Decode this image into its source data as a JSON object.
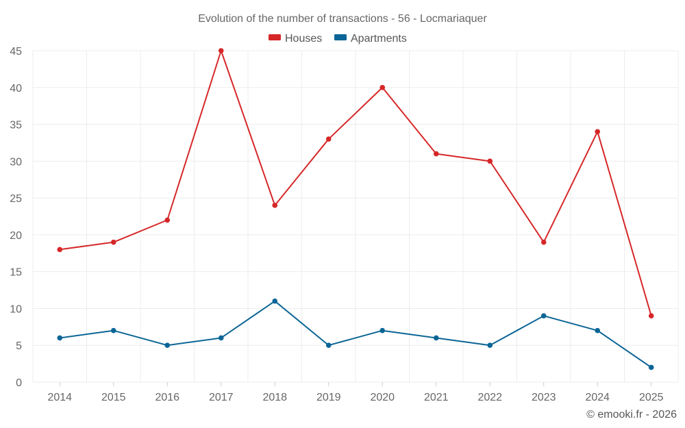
{
  "chart_data": {
    "type": "line",
    "title": "Evolution of the number of transactions - 56 - Locmariaquer",
    "categories": [
      "2014",
      "2015",
      "2016",
      "2017",
      "2018",
      "2019",
      "2020",
      "2021",
      "2022",
      "2023",
      "2024",
      "2025"
    ],
    "series": [
      {
        "name": "Houses",
        "color": "#d62728",
        "values": [
          18,
          19,
          22,
          45,
          24,
          33,
          40,
          31,
          30,
          19,
          34,
          9
        ]
      },
      {
        "name": "Apartments",
        "color": "#0b6596",
        "values": [
          6,
          7,
          5,
          6,
          11,
          5,
          7,
          6,
          5,
          9,
          7,
          2
        ]
      }
    ],
    "ylim": [
      0,
      45
    ],
    "yticks": [
      0,
      5,
      10,
      15,
      20,
      25,
      30,
      35,
      40,
      45
    ],
    "xlabel": "",
    "ylabel": "",
    "grid": true,
    "legend": "top-center"
  },
  "credit": "© emooki.fr - 2026"
}
